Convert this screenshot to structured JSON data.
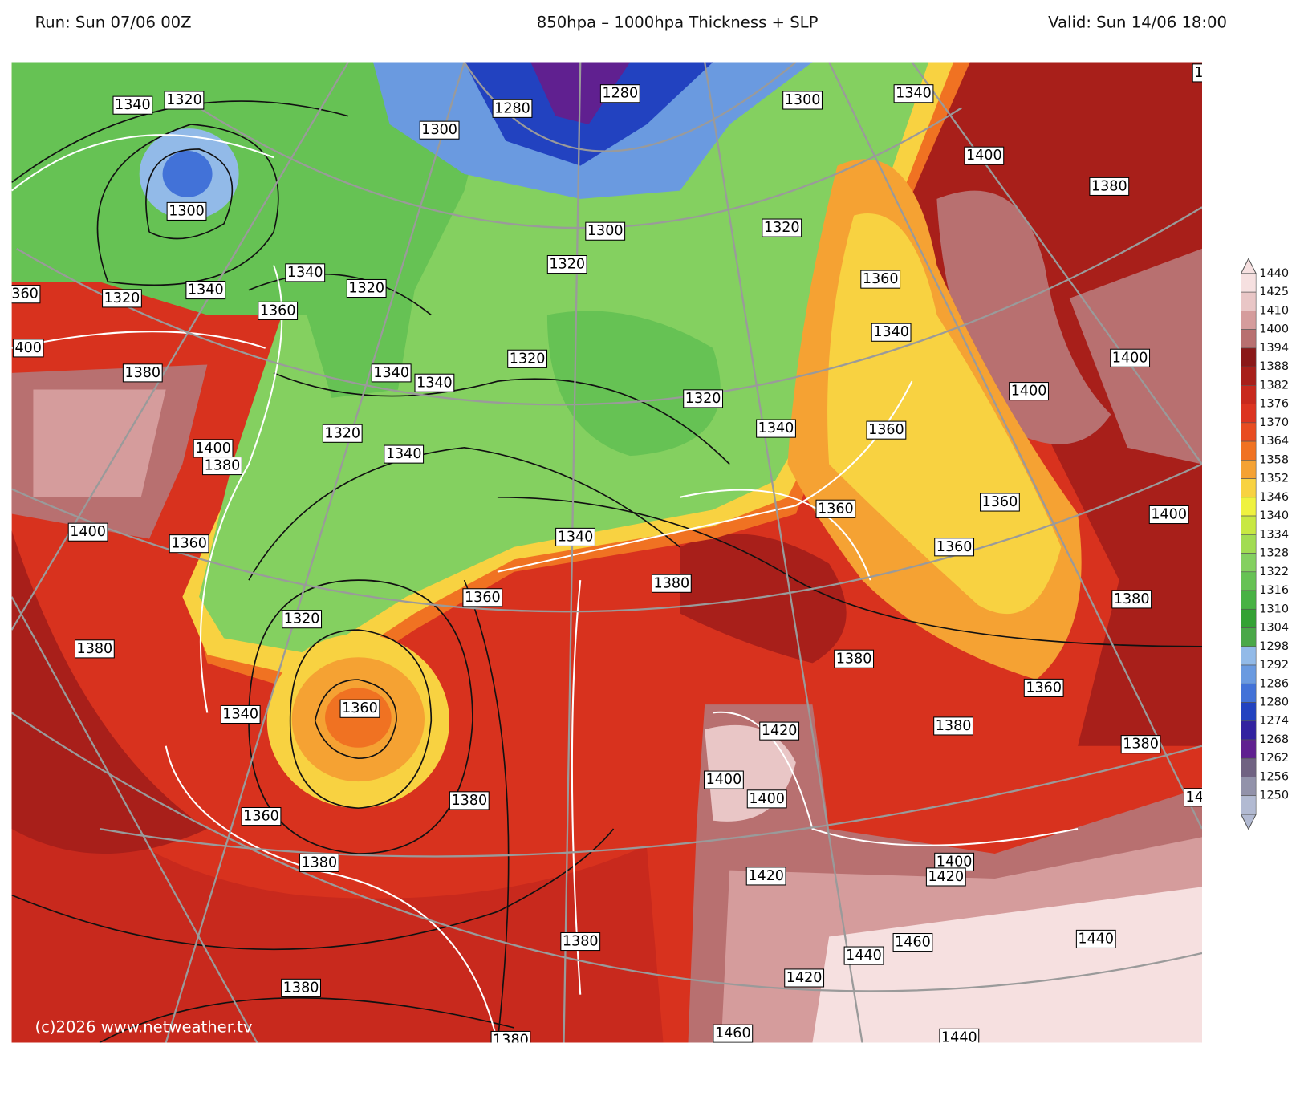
{
  "header": {
    "run": "Run: Sun 07/06 00Z",
    "title": "850hpa – 1000hpa Thickness + SLP",
    "valid": "Valid: Sun 14/06 18:00"
  },
  "contour_labels": [
    "1340",
    "1320",
    "1300",
    "1280",
    "1280",
    "1300",
    "1300",
    "1340",
    "1400",
    "1380",
    "1300",
    "1320",
    "1320",
    "1340",
    "1320",
    "1340",
    "1320",
    "360",
    "1360",
    "400",
    "1380",
    "1360",
    "1340",
    "1400",
    "1400",
    "1320",
    "1340",
    "1340",
    "1320",
    "1340",
    "1360",
    "1320",
    "1340",
    "1400",
    "1380",
    "1400",
    "1360",
    "1360",
    "1360",
    "1400",
    "1340",
    "1360",
    "1380",
    "1360",
    "1380",
    "1320",
    "1380",
    "1380",
    "1360",
    "1340",
    "1360",
    "1420",
    "1380",
    "1380",
    "1400",
    "1400",
    "1380",
    "1360",
    "1380",
    "1400",
    "1420",
    "1420",
    "1380",
    "1460",
    "1440",
    "1440",
    "1420",
    "1380",
    "1460",
    "1440",
    "1380",
    "1",
    "14"
  ],
  "legend": {
    "levels": [
      1440,
      1425,
      1410,
      1400,
      1394,
      1388,
      1382,
      1376,
      1370,
      1364,
      1358,
      1352,
      1346,
      1340,
      1334,
      1328,
      1322,
      1316,
      1310,
      1304,
      1298,
      1292,
      1286,
      1280,
      1274,
      1268,
      1262,
      1256,
      1250
    ],
    "colors": [
      "#f6e0e0",
      "#e9c6c6",
      "#d59c9c",
      "#b87070",
      "#8a1818",
      "#a81f1a",
      "#c8291d",
      "#dc3420",
      "#e84c21",
      "#f07222",
      "#f5a233",
      "#f8d241",
      "#eff23f",
      "#c8e842",
      "#a2dc52",
      "#84d060",
      "#66c254",
      "#48b244",
      "#34a234",
      "#4aa848",
      "#92bae8",
      "#6a9ae0",
      "#4272d8",
      "#2242c0",
      "#3222a0",
      "#602090",
      "#706282",
      "#9292aa",
      "#b2bad2"
    ]
  },
  "copyright": "(c)2026 www.netweather.tv"
}
